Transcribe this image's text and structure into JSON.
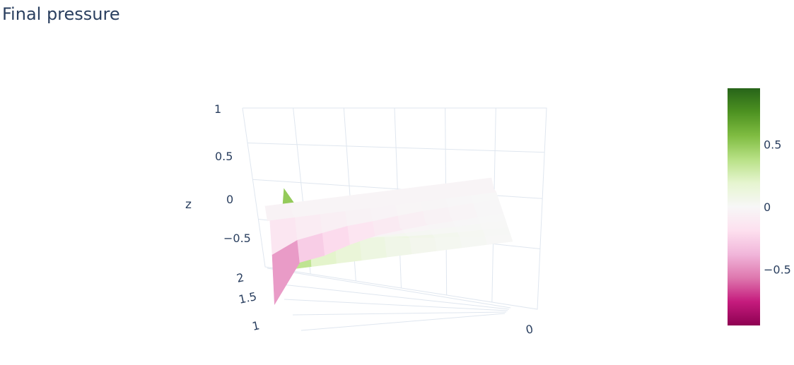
{
  "chart_data": {
    "type": "surface",
    "title": "Final pressure",
    "zlabel": "z",
    "z_ticks": [
      "1",
      "0.5",
      "0",
      "−0.5"
    ],
    "y_ticks": [
      "2",
      "1.5",
      "1"
    ],
    "x_ticks": [
      "0"
    ],
    "colorbar": {
      "ticks": [
        "0.5",
        "0",
        "−0.5"
      ],
      "tick_values": [
        0.5,
        0,
        -0.5
      ],
      "range": [
        -0.95,
        0.95
      ],
      "colors": [
        "#8e0152",
        "#c51b7d",
        "#de77ae",
        "#f1b6da",
        "#fde0ef",
        "#f7f7f7",
        "#e6f5d0",
        "#b8e186",
        "#7fbc41",
        "#4d9221",
        "#276419"
      ]
    },
    "z": [
      [
        0.0,
        0.95,
        0.45,
        0.0,
        -0.35,
        -0.9,
        -0.35,
        0.0,
        -0.1,
        0.0
      ],
      [
        0.0,
        0.45,
        0.15,
        0.0,
        -0.2,
        -0.4,
        -0.2,
        0.0,
        -0.05,
        0.0
      ],
      [
        0.0,
        0.35,
        0.12,
        0.0,
        -0.15,
        -0.35,
        -0.15,
        0.0,
        -0.05,
        0.0
      ],
      [
        0.0,
        0.25,
        0.1,
        0.0,
        -0.1,
        -0.25,
        -0.1,
        0.0,
        -0.05,
        0.0
      ],
      [
        0.0,
        0.18,
        0.08,
        0.0,
        -0.08,
        -0.18,
        -0.08,
        0.0,
        -0.05,
        0.0
      ],
      [
        0.0,
        0.12,
        0.05,
        0.0,
        -0.05,
        -0.12,
        -0.05,
        0.0,
        -0.05,
        0.0
      ],
      [
        0.0,
        0.08,
        0.03,
        0.0,
        -0.03,
        -0.08,
        -0.03,
        0.0,
        -0.05,
        0.0
      ],
      [
        0.0,
        0.05,
        0.02,
        0.0,
        -0.02,
        -0.05,
        -0.02,
        0.0,
        -0.05,
        0.0
      ],
      [
        0.0,
        0.02,
        0.01,
        0.0,
        -0.01,
        -0.02,
        -0.01,
        0.0,
        -0.05,
        0.0
      ],
      [
        0.0,
        0.0,
        0.0,
        0.0,
        0.0,
        0.0,
        0.0,
        0.0,
        -0.05,
        0.0
      ]
    ]
  }
}
